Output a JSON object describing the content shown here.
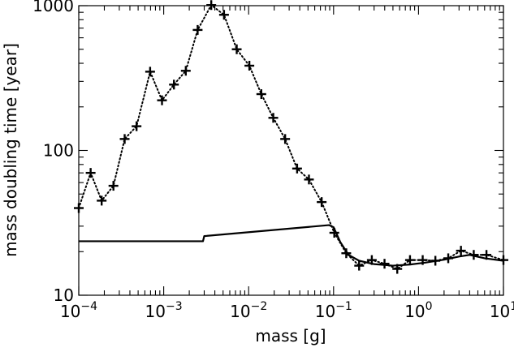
{
  "chart_data": {
    "type": "line",
    "title": "",
    "xlabel": "mass [g]",
    "ylabel": "mass doubling time [year]",
    "xscale": "log",
    "yscale": "log",
    "xlim": [
      0.0001,
      10
    ],
    "ylim": [
      10,
      1000
    ],
    "grid": false,
    "x_ticks": [
      {
        "value": 0.0001,
        "base": "10",
        "exp": "−4"
      },
      {
        "value": 0.001,
        "base": "10",
        "exp": "−3"
      },
      {
        "value": 0.01,
        "base": "10",
        "exp": "−2"
      },
      {
        "value": 0.1,
        "base": "10",
        "exp": "−1"
      },
      {
        "value": 1,
        "base": "10",
        "exp": "0"
      },
      {
        "value": 10,
        "base": "10",
        "exp": "1"
      }
    ],
    "y_ticks": [
      {
        "value": 10,
        "label": "10"
      },
      {
        "value": 100,
        "label": "100"
      },
      {
        "value": 1000,
        "label": "1000"
      }
    ],
    "series": [
      {
        "style": "dotted-with-plus-markers",
        "x": [
          0.0001,
          0.000138,
          0.000186,
          0.000256,
          0.000347,
          0.000479,
          0.000692,
          0.000955,
          0.00132,
          0.00182,
          0.00251,
          0.00363,
          0.00513,
          0.00724,
          0.0102,
          0.0141,
          0.0195,
          0.0269,
          0.0372,
          0.0513,
          0.0724,
          0.102,
          0.141,
          0.2,
          0.282,
          0.398,
          0.562,
          0.794,
          1.12,
          1.58,
          2.24,
          3.16,
          4.47,
          6.31,
          10
        ],
        "values": [
          40,
          70,
          45,
          57,
          120,
          147,
          350,
          222,
          285,
          355,
          680,
          1010,
          865,
          500,
          385,
          245,
          168,
          120,
          75,
          63,
          44,
          27,
          19.5,
          16,
          17.5,
          16.5,
          15.2,
          17.5,
          17.5,
          17.3,
          18,
          20.3,
          19,
          19,
          17.5
        ]
      },
      {
        "style": "solid",
        "x": [
          0.0001,
          0.0029,
          0.003,
          0.0882,
          0.1,
          0.12,
          0.15,
          0.2,
          0.3,
          0.5,
          0.8,
          1.2,
          2,
          3,
          4,
          6,
          10
        ],
        "values": [
          23.6,
          23.6,
          25.6,
          30.5,
          29.5,
          23.3,
          19,
          17.3,
          16.4,
          16,
          16.3,
          16.8,
          17.6,
          18.5,
          19,
          18,
          17.3
        ]
      }
    ]
  }
}
